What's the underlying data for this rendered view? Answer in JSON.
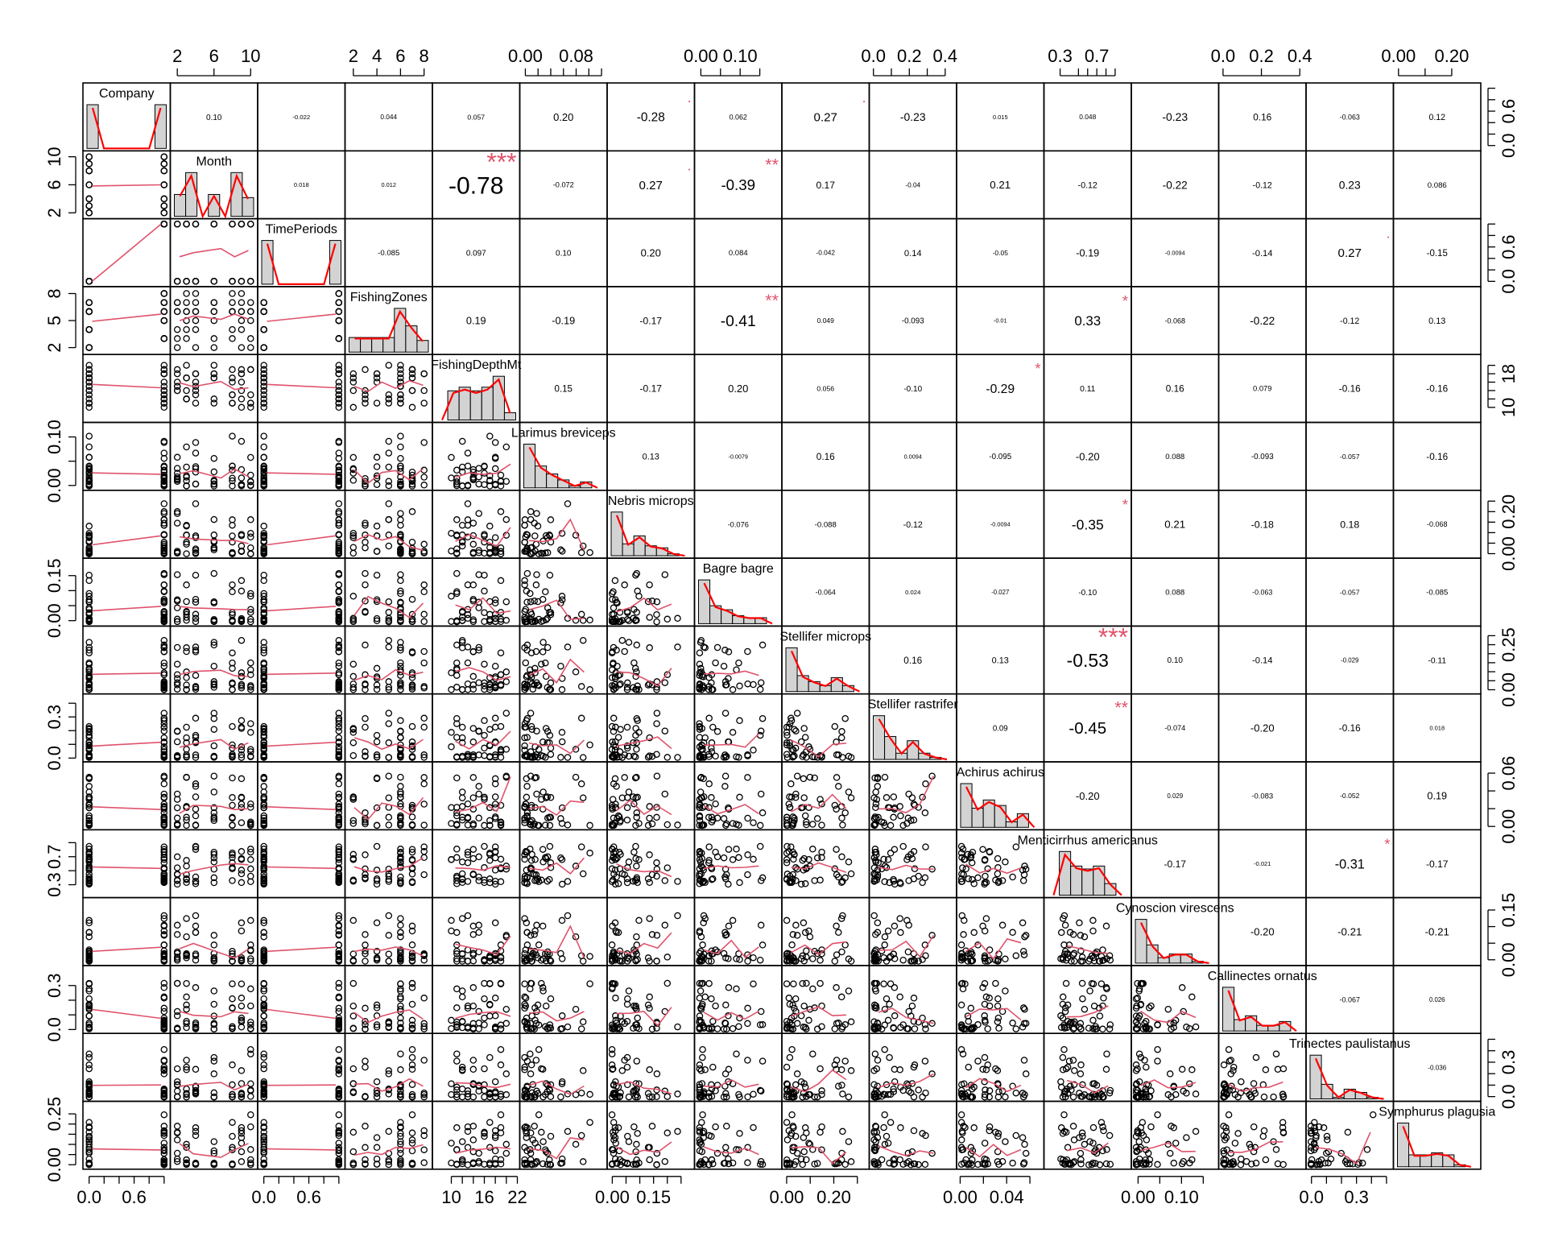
{
  "chart_data": {
    "type": "scatter-matrix",
    "variables": [
      {
        "name": "Company",
        "label": "Company",
        "lo": -0.05,
        "hi": 1.05
      },
      {
        "name": "Month",
        "label": "Month",
        "lo": 1.5,
        "hi": 10.5
      },
      {
        "name": "TimePeriods",
        "label": "TimePeriods",
        "lo": -0.05,
        "hi": 1.05
      },
      {
        "name": "FishingZones",
        "label": "FishingZones",
        "lo": 1.5,
        "hi": 8.5
      },
      {
        "name": "FishingDepthMt",
        "label": "FishingDepthMt",
        "lo": 7,
        "hi": 22
      },
      {
        "name": "Larimus breviceps",
        "label": "Larimus breviceps",
        "lo": -0.005,
        "hi": 0.125
      },
      {
        "name": "Nebris microps",
        "label": "Nebris microps",
        "lo": -0.01,
        "hi": 0.29
      },
      {
        "name": "Bagre bagre",
        "label": "Bagre bagre",
        "lo": -0.01,
        "hi": 0.2
      },
      {
        "name": "Stellifer microps",
        "label": "Stellifer microps",
        "lo": -0.01,
        "hi": 0.34
      },
      {
        "name": "Stellifer rastrifer",
        "label": "Stellifer rastrifer",
        "lo": -0.01,
        "hi": 0.45
      },
      {
        "name": "Achirus achirus",
        "label": "Achirus achirus",
        "lo": -0.001,
        "hi": 0.07
      },
      {
        "name": "Menticirrhus americanus",
        "label": "Menticirrhus americanus",
        "lo": 0.15,
        "hi": 1.05
      },
      {
        "name": "Cynoscion virescens",
        "label": "Cynoscion virescens",
        "lo": -0.01,
        "hi": 0.18
      },
      {
        "name": "Callinectes ornatus",
        "label": "Callinectes ornatus",
        "lo": -0.01,
        "hi": 0.42
      },
      {
        "name": "Trinectes paulistanus",
        "label": "Trinectes paulistanus",
        "lo": -0.02,
        "hi": 0.53
      },
      {
        "name": "Symphurus plagusia",
        "label": "Symphurus plagusia",
        "lo": -0.01,
        "hi": 0.3
      }
    ],
    "axis_ticks": {
      "top": [
        {
          "col": 1,
          "ticks": [
            2,
            6,
            10
          ]
        },
        {
          "col": 3,
          "ticks": [
            2,
            4,
            6,
            8
          ]
        },
        {
          "col": 5,
          "ticks": [
            0.0,
            0.08
          ],
          "minor": [
            0.02,
            0.04,
            0.06,
            0.1,
            0.12
          ],
          "labels": [
            "0.00",
            "0.08"
          ]
        },
        {
          "col": 7,
          "ticks": [
            0.0,
            0.1
          ],
          "minor": [
            0.05,
            0.15
          ],
          "labels": [
            "0.00",
            "0.10"
          ]
        },
        {
          "col": 9,
          "ticks": [
            0.0,
            0.2,
            0.4
          ],
          "minor": [
            0.1,
            0.3
          ],
          "labels": [
            "0.0",
            "0.2",
            "0.4"
          ]
        },
        {
          "col": 11,
          "ticks": [
            0.3,
            0.7
          ],
          "minor": [
            0.5,
            0.6,
            0.8,
            0.9
          ],
          "labels": [
            "0.3",
            "0.7"
          ]
        },
        {
          "col": 13,
          "ticks": [
            0.0,
            0.2,
            0.4
          ],
          "labels": [
            "0.0",
            "0.2",
            "0.4"
          ]
        },
        {
          "col": 15,
          "ticks": [
            0.0,
            0.2
          ],
          "minor": [
            0.1
          ],
          "labels": [
            "0.00",
            "0.20"
          ]
        }
      ],
      "bottom": [
        {
          "col": 0,
          "ticks": [
            0.0,
            0.6
          ],
          "minor": [
            0.2,
            0.4,
            0.8,
            1.0
          ],
          "labels": [
            "0.0",
            "0.6"
          ]
        },
        {
          "col": 2,
          "ticks": [
            0.0,
            0.6
          ],
          "minor": [
            0.2,
            0.4,
            0.8,
            1.0
          ],
          "labels": [
            "0.0",
            "0.6"
          ]
        },
        {
          "col": 4,
          "ticks": [
            10,
            16,
            22
          ],
          "minor": [
            12,
            14,
            18,
            20
          ]
        },
        {
          "col": 6,
          "ticks": [
            0.0,
            0.15
          ],
          "minor": [
            0.05,
            0.1,
            0.2,
            0.25
          ],
          "labels": [
            "0.00",
            "0.15"
          ]
        },
        {
          "col": 8,
          "ticks": [
            0.0,
            0.2
          ],
          "minor": [
            0.1,
            0.3
          ],
          "labels": [
            "0.00",
            "0.20"
          ]
        },
        {
          "col": 10,
          "ticks": [
            0.0,
            0.04
          ],
          "minor": [
            0.02,
            0.06
          ],
          "labels": [
            "0.00",
            "0.04"
          ]
        },
        {
          "col": 12,
          "ticks": [
            0.0,
            0.1
          ],
          "minor": [
            0.05,
            0.15
          ],
          "labels": [
            "0.00",
            "0.10"
          ]
        },
        {
          "col": 14,
          "ticks": [
            0.0,
            0.3
          ],
          "minor": [
            0.1,
            0.2,
            0.4,
            0.5
          ],
          "labels": [
            "0.0",
            "0.3"
          ]
        }
      ],
      "left": [
        {
          "row": 1,
          "ticks": [
            2,
            6,
            10
          ]
        },
        {
          "row": 3,
          "ticks": [
            2,
            5,
            8
          ]
        },
        {
          "row": 5,
          "ticks": [
            0.0,
            0.1
          ],
          "minor": [
            0.05
          ],
          "labels": [
            "0.00",
            "0.10"
          ]
        },
        {
          "row": 7,
          "ticks": [
            0.0,
            0.15
          ],
          "minor": [
            0.05,
            0.1
          ],
          "labels": [
            "0.00",
            "0.15"
          ]
        },
        {
          "row": 9,
          "ticks": [
            0.0,
            0.3
          ],
          "minor": [
            0.1,
            0.2,
            0.4
          ],
          "labels": [
            "0.0",
            "0.3"
          ]
        },
        {
          "row": 11,
          "ticks": [
            0.3,
            0.7
          ],
          "minor": [
            0.5,
            0.9
          ],
          "labels": [
            "0.3",
            "0.7"
          ]
        },
        {
          "row": 13,
          "ticks": [
            0.0,
            0.3
          ],
          "minor": [
            0.1,
            0.2
          ],
          "labels": [
            "0.0",
            "0.3"
          ]
        },
        {
          "row": 15,
          "ticks": [
            0.0,
            0.25
          ],
          "minor": [
            0.05,
            0.1,
            0.15,
            0.2
          ],
          "labels": [
            "0.00",
            "0.25"
          ]
        }
      ],
      "right": [
        {
          "row": 0,
          "ticks": [
            0.0,
            0.6
          ],
          "minor": [
            0.2,
            0.4,
            0.8,
            1.0
          ],
          "labels": [
            "0.0",
            "0.6"
          ]
        },
        {
          "row": 2,
          "ticks": [
            0.0,
            0.6
          ],
          "minor": [
            0.2,
            0.4,
            0.8,
            1.0
          ],
          "labels": [
            "0.0",
            "0.6"
          ]
        },
        {
          "row": 4,
          "ticks": [
            10,
            18
          ],
          "minor": [
            12,
            14,
            16,
            20
          ]
        },
        {
          "row": 6,
          "ticks": [
            0.0,
            0.2
          ],
          "minor": [
            0.05,
            0.1,
            0.15,
            0.25
          ],
          "labels": [
            "0.00",
            "0.20"
          ]
        },
        {
          "row": 8,
          "ticks": [
            0.0,
            0.25
          ],
          "minor": [
            0.05,
            0.1,
            0.15,
            0.2,
            0.3
          ],
          "labels": [
            "0.00",
            "0.25"
          ]
        },
        {
          "row": 10,
          "ticks": [
            0.0,
            0.06
          ],
          "minor": [
            0.02,
            0.04
          ],
          "labels": [
            "0.00",
            "0.06"
          ]
        },
        {
          "row": 12,
          "ticks": [
            0.0,
            0.15
          ],
          "minor": [
            0.05,
            0.1
          ],
          "labels": [
            "0.00",
            "0.15"
          ]
        },
        {
          "row": 14,
          "ticks": [
            0.0,
            0.3
          ],
          "minor": [
            0.1,
            0.2,
            0.4,
            0.5
          ],
          "labels": [
            "0.0",
            "0.3"
          ]
        }
      ]
    },
    "correlations": [
      {
        "row": 0,
        "values": [
          "0.10",
          "-0.022",
          "0.044",
          "0.057",
          "0.20",
          "-0.28",
          "0.062",
          "0.27",
          "-0.23",
          "0.015",
          "0.048",
          "-0.23",
          "0.16",
          "-0.063",
          "0.12"
        ],
        "stars": [
          "",
          "",
          "",
          "",
          "",
          ".",
          "",
          ".",
          "",
          "",
          "",
          "",
          "",
          "",
          ""
        ]
      },
      {
        "row": 1,
        "values": [
          "0.018",
          "0.012",
          "-0.78",
          "-0.072",
          "0.27",
          "-0.39",
          "0.17",
          "-0.04",
          "0.21",
          "-0.12",
          "-0.22",
          "-0.12",
          "0.23",
          "0.086"
        ],
        "stars": [
          "",
          "",
          "***",
          "",
          ".",
          "**",
          "",
          "",
          "",
          "",
          "",
          "",
          "",
          ""
        ]
      },
      {
        "row": 2,
        "values": [
          "-0.085",
          "0.097",
          "0.10",
          "0.20",
          "0.084",
          "-0.042",
          "0.14",
          "-0.05",
          "-0.19",
          "-0.0094",
          "-0.14",
          "0.27",
          "-0.15"
        ],
        "stars": [
          "",
          "",
          "",
          "",
          "",
          "",
          "",
          "",
          "",
          "",
          "",
          ".",
          ""
        ]
      },
      {
        "row": 3,
        "values": [
          "0.19",
          "-0.19",
          "-0.17",
          "-0.41",
          "0.049",
          "-0.093",
          "-0.01",
          "0.33",
          "-0.068",
          "-0.22",
          "-0.12",
          "0.13"
        ],
        "stars": [
          "",
          "",
          "",
          "**",
          "",
          "",
          "",
          "*",
          "",
          "",
          "",
          ""
        ]
      },
      {
        "row": 4,
        "values": [
          "0.15",
          "-0.17",
          "0.20",
          "0.056",
          "-0.10",
          "-0.29",
          "0.11",
          "0.16",
          "0.079",
          "-0.16",
          "-0.16"
        ],
        "stars": [
          "",
          "",
          "",
          "",
          "",
          "*",
          "",
          "",
          "",
          "",
          ""
        ]
      },
      {
        "row": 5,
        "values": [
          "0.13",
          "-0.0079",
          "0.16",
          "0.0094",
          "-0.095",
          "-0.20",
          "0.088",
          "-0.093",
          "-0.057",
          "-0.16"
        ],
        "stars": [
          "",
          "",
          "",
          "",
          "",
          "",
          "",
          "",
          "",
          ""
        ]
      },
      {
        "row": 6,
        "values": [
          "-0.076",
          "-0.088",
          "-0.12",
          "-0.0094",
          "-0.35",
          "0.21",
          "-0.18",
          "0.18",
          "-0.068"
        ],
        "stars": [
          "",
          "",
          "",
          "",
          "*",
          "",
          "",
          "",
          ""
        ]
      },
      {
        "row": 7,
        "values": [
          "-0.064",
          "0.024",
          "-0.027",
          "-0.10",
          "0.088",
          "-0.063",
          "-0.057",
          "-0.085"
        ],
        "stars": [
          "",
          "",
          "",
          "",
          "",
          "",
          "",
          ""
        ]
      },
      {
        "row": 8,
        "values": [
          "0.16",
          "0.13",
          "-0.53",
          "0.10",
          "-0.14",
          "-0.029",
          "-0.11"
        ],
        "stars": [
          "",
          "",
          "***",
          "",
          "",
          "",
          ""
        ]
      },
      {
        "row": 9,
        "values": [
          "0.09",
          "-0.45",
          "-0.074",
          "-0.20",
          "-0.16",
          "0.018"
        ],
        "stars": [
          "",
          "**",
          "",
          "",
          "",
          ""
        ]
      },
      {
        "row": 10,
        "values": [
          "-0.20",
          "0.029",
          "-0.083",
          "-0.052",
          "0.19"
        ],
        "stars": [
          "",
          "",
          "",
          "",
          ""
        ]
      },
      {
        "row": 11,
        "values": [
          "-0.17",
          "-0.021",
          "-0.31",
          "-0.17"
        ],
        "stars": [
          "",
          "",
          "*",
          ""
        ]
      },
      {
        "row": 12,
        "values": [
          "-0.20",
          "-0.21",
          "-0.21"
        ],
        "stars": [
          "",
          "",
          ""
        ]
      },
      {
        "row": 13,
        "values": [
          "-0.067",
          "0.026"
        ],
        "stars": [
          "",
          ""
        ]
      },
      {
        "row": 14,
        "values": [
          "-0.036"
        ],
        "stars": [
          ""
        ]
      }
    ],
    "star_magnitudes": {
      "***": 0.78,
      "**": 0.41,
      "*": 0.31,
      ".": 0.27
    }
  }
}
